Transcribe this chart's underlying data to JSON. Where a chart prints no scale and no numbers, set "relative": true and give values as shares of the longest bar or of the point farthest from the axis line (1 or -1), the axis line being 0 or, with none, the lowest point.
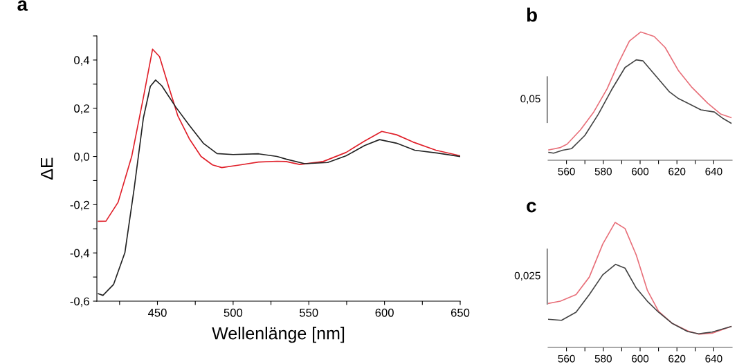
{
  "chart_data": [
    {
      "type": "line",
      "title": "a",
      "xlabel": "Wellenlänge [nm]",
      "ylabel": "ΔE",
      "xlim": [
        410,
        650
      ],
      "ylim": [
        -0.6,
        0.5
      ],
      "xticks": [
        {
          "value": 425,
          "label": null
        },
        450,
        {
          "value": 475,
          "label": null
        },
        500,
        {
          "value": 525,
          "label": null
        },
        550,
        {
          "value": 575,
          "label": null
        },
        600,
        {
          "value": 625,
          "label": null
        },
        650
      ],
      "yticks": [
        {
          "value": -0.6,
          "label": "-0,6"
        },
        {
          "value": -0.5,
          "label": null
        },
        {
          "value": -0.4,
          "label": "-0,4"
        },
        {
          "value": -0.3,
          "label": null
        },
        {
          "value": -0.2,
          "label": "-0,2"
        },
        {
          "value": -0.1,
          "label": null
        },
        {
          "value": 0.0,
          "label": "0,0"
        },
        {
          "value": 0.1,
          "label": null
        },
        {
          "value": 0.2,
          "label": "0,2"
        },
        {
          "value": 0.3,
          "label": null
        },
        {
          "value": 0.4,
          "label": "0,4"
        },
        {
          "value": 0.5,
          "label": null
        }
      ],
      "grid": false,
      "legend": false,
      "marker": "none",
      "line_style": "solid",
      "series": [
        {
          "color": "#e0202a",
          "x": [
            411,
            416,
            424,
            433,
            440.7,
            446.8,
            451.4,
            457.4,
            463.5,
            471,
            478.8,
            486.4,
            492.5,
            504.7,
            516.7,
            529,
            535,
            544,
            559.4,
            574.7,
            586.8,
            598.2,
            608,
            618.8,
            634,
            650
          ],
          "values": [
            -0.269,
            -0.268,
            -0.19,
            0.0,
            0.244,
            0.445,
            0.414,
            0.29,
            0.168,
            0.074,
            0.0,
            -0.035,
            -0.046,
            -0.035,
            -0.023,
            -0.02,
            -0.021,
            -0.033,
            -0.021,
            0.017,
            0.064,
            0.104,
            0.09,
            0.06,
            0.026,
            0.003
          ]
        },
        {
          "color": "#222222",
          "x": [
            411,
            414,
            421,
            428.5,
            434.6,
            440.7,
            445.3,
            448.8,
            452.9,
            462,
            471,
            480.3,
            489.4,
            500,
            516.8,
            529,
            535,
            547.3,
            562.5,
            574.7,
            586.8,
            596.7,
            608,
            620,
            635,
            650
          ],
          "values": [
            -0.569,
            -0.576,
            -0.531,
            -0.399,
            -0.134,
            0.159,
            0.291,
            0.317,
            0.293,
            0.206,
            0.13,
            0.055,
            0.012,
            0.008,
            0.011,
            0.0,
            -0.011,
            -0.03,
            -0.025,
            0.003,
            0.045,
            0.07,
            0.055,
            0.026,
            0.014,
            0.0
          ]
        }
      ]
    },
    {
      "type": "line",
      "title": "b",
      "relative": true,
      "xlim": [
        550,
        650
      ],
      "tick_labels": "x",
      "annotations": [
        "0,05"
      ],
      "grid": false,
      "legend": false,
      "marker": "none",
      "line_style": "solid",
      "xticks": [
        560,
        {
          "value": 570,
          "label": null
        },
        580,
        {
          "value": 590,
          "label": null
        },
        600,
        {
          "value": 610,
          "label": null
        },
        620,
        {
          "value": 630,
          "label": null
        },
        640
      ],
      "series": [
        {
          "color": "#e8707a",
          "x": [
            550.4,
            556.7,
            560.3,
            567.6,
            574.8,
            582.1,
            588.2,
            594.2,
            600.3,
            607.6,
            613.6,
            620.9,
            628.2,
            636.7,
            643.9,
            649.4
          ],
          "values": [
            0.081,
            0.099,
            0.125,
            0.237,
            0.376,
            0.558,
            0.757,
            0.93,
            1.0,
            0.965,
            0.879,
            0.697,
            0.567,
            0.445,
            0.359,
            0.333
          ]
        },
        {
          "color": "#444444",
          "x": [
            550.4,
            553,
            557.9,
            562.7,
            570,
            577.3,
            584.5,
            591.8,
            597.9,
            601.5,
            608.8,
            616,
            620.9,
            625.8,
            633,
            640.3,
            645.2,
            649.4
          ],
          "values": [
            0.061,
            0.055,
            0.078,
            0.09,
            0.194,
            0.359,
            0.549,
            0.723,
            0.783,
            0.775,
            0.653,
            0.532,
            0.48,
            0.445,
            0.393,
            0.376,
            0.324,
            0.289
          ]
        }
      ]
    },
    {
      "type": "line",
      "title": "c",
      "relative": true,
      "xlim": [
        550,
        650
      ],
      "tick_labels": "x",
      "annotations": [
        "0,025"
      ],
      "grid": false,
      "legend": false,
      "marker": "none",
      "line_style": "solid",
      "xticks": [
        560,
        {
          "value": 570,
          "label": null
        },
        580,
        {
          "value": 590,
          "label": null
        },
        600,
        {
          "value": 610,
          "label": null
        },
        620,
        {
          "value": 630,
          "label": null
        },
        640
      ],
      "series": [
        {
          "color": "#e8707a",
          "x": [
            550,
            556.7,
            565.2,
            572.4,
            579.7,
            586.4,
            591.8,
            597.9,
            603.9,
            610,
            617.3,
            625.8,
            631.8,
            639.1,
            649.4
          ],
          "values": [
            0.352,
            0.37,
            0.423,
            0.563,
            0.827,
            1.0,
            0.951,
            0.739,
            0.458,
            0.29,
            0.194,
            0.132,
            0.106,
            0.114,
            0.167
          ]
        },
        {
          "color": "#444444",
          "x": [
            550,
            557.3,
            565.2,
            572.4,
            579.7,
            586.7,
            591.8,
            597.9,
            603.9,
            610,
            617.3,
            625.8,
            631.8,
            639.1,
            649.4
          ],
          "values": [
            0.225,
            0.217,
            0.282,
            0.423,
            0.581,
            0.665,
            0.634,
            0.475,
            0.37,
            0.282,
            0.194,
            0.127,
            0.109,
            0.123,
            0.167
          ]
        }
      ]
    }
  ]
}
